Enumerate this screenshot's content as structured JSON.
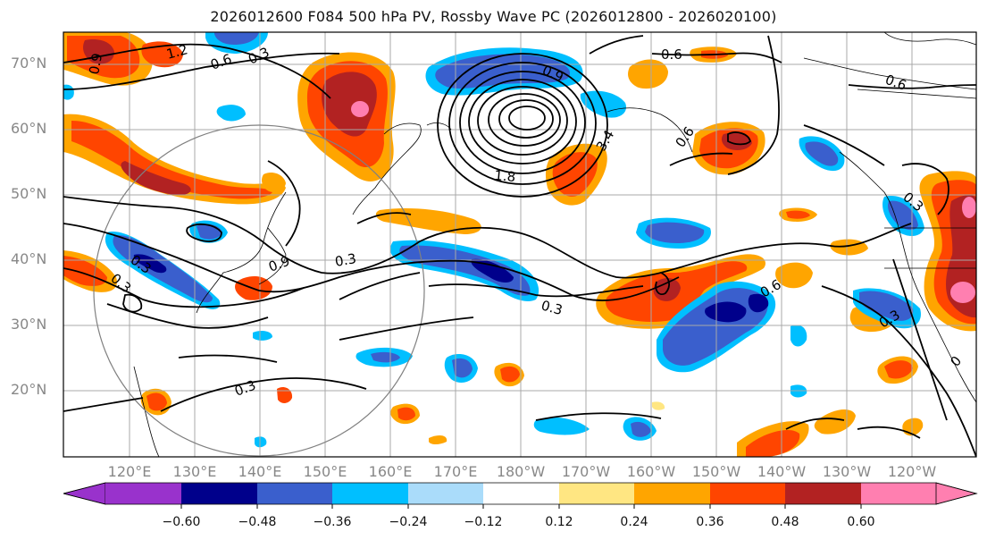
{
  "title": "2026012600 F084 500 hPa PV, Rossby Wave PC (2026012800 - 2026020100)",
  "map": {
    "type": "contour-map",
    "field": "500 hPa PV anomaly (shaded) with Rossby wave PC contours",
    "lat_labels": [
      "20°N",
      "30°N",
      "40°N",
      "50°N",
      "60°N",
      "70°N"
    ],
    "lon_labels": [
      "120°E",
      "130°E",
      "140°E",
      "150°E",
      "160°E",
      "170°E",
      "180°W",
      "170°W",
      "160°W",
      "150°W",
      "140°W",
      "130°W",
      "120°W"
    ],
    "contour_labels": [
      "1.2",
      "0.6",
      "0.3",
      "0.9",
      "0.9",
      "3.4",
      "1.8",
      "0.6",
      "0.6",
      "0.3",
      "0.9",
      "0.3",
      "0.3",
      "0.3",
      "0.6",
      "0.3",
      "0.3",
      "0.6",
      "0.3",
      "0"
    ],
    "colors": {
      "lt_blue": "#aadcfa",
      "cyan": "#00bfff",
      "blue": "#3a5fcd",
      "navy": "#00008b",
      "yellow": "#ffe682",
      "orange": "#ffa500",
      "red": "#ff4500",
      "darkred": "#b22222",
      "pink": "#ff7fb0"
    }
  },
  "colorbar": {
    "ticks": [
      "−0.60",
      "−0.48",
      "−0.36",
      "−0.24",
      "−0.12",
      "0.12",
      "0.24",
      "0.36",
      "0.48",
      "0.60"
    ],
    "colors": [
      "#9932cc",
      "#00008b",
      "#3a5fcd",
      "#00bfff",
      "#aadcfa",
      "#ffffff",
      "#ffe682",
      "#ffa500",
      "#ff4500",
      "#b22222",
      "#ff7fb0"
    ]
  }
}
